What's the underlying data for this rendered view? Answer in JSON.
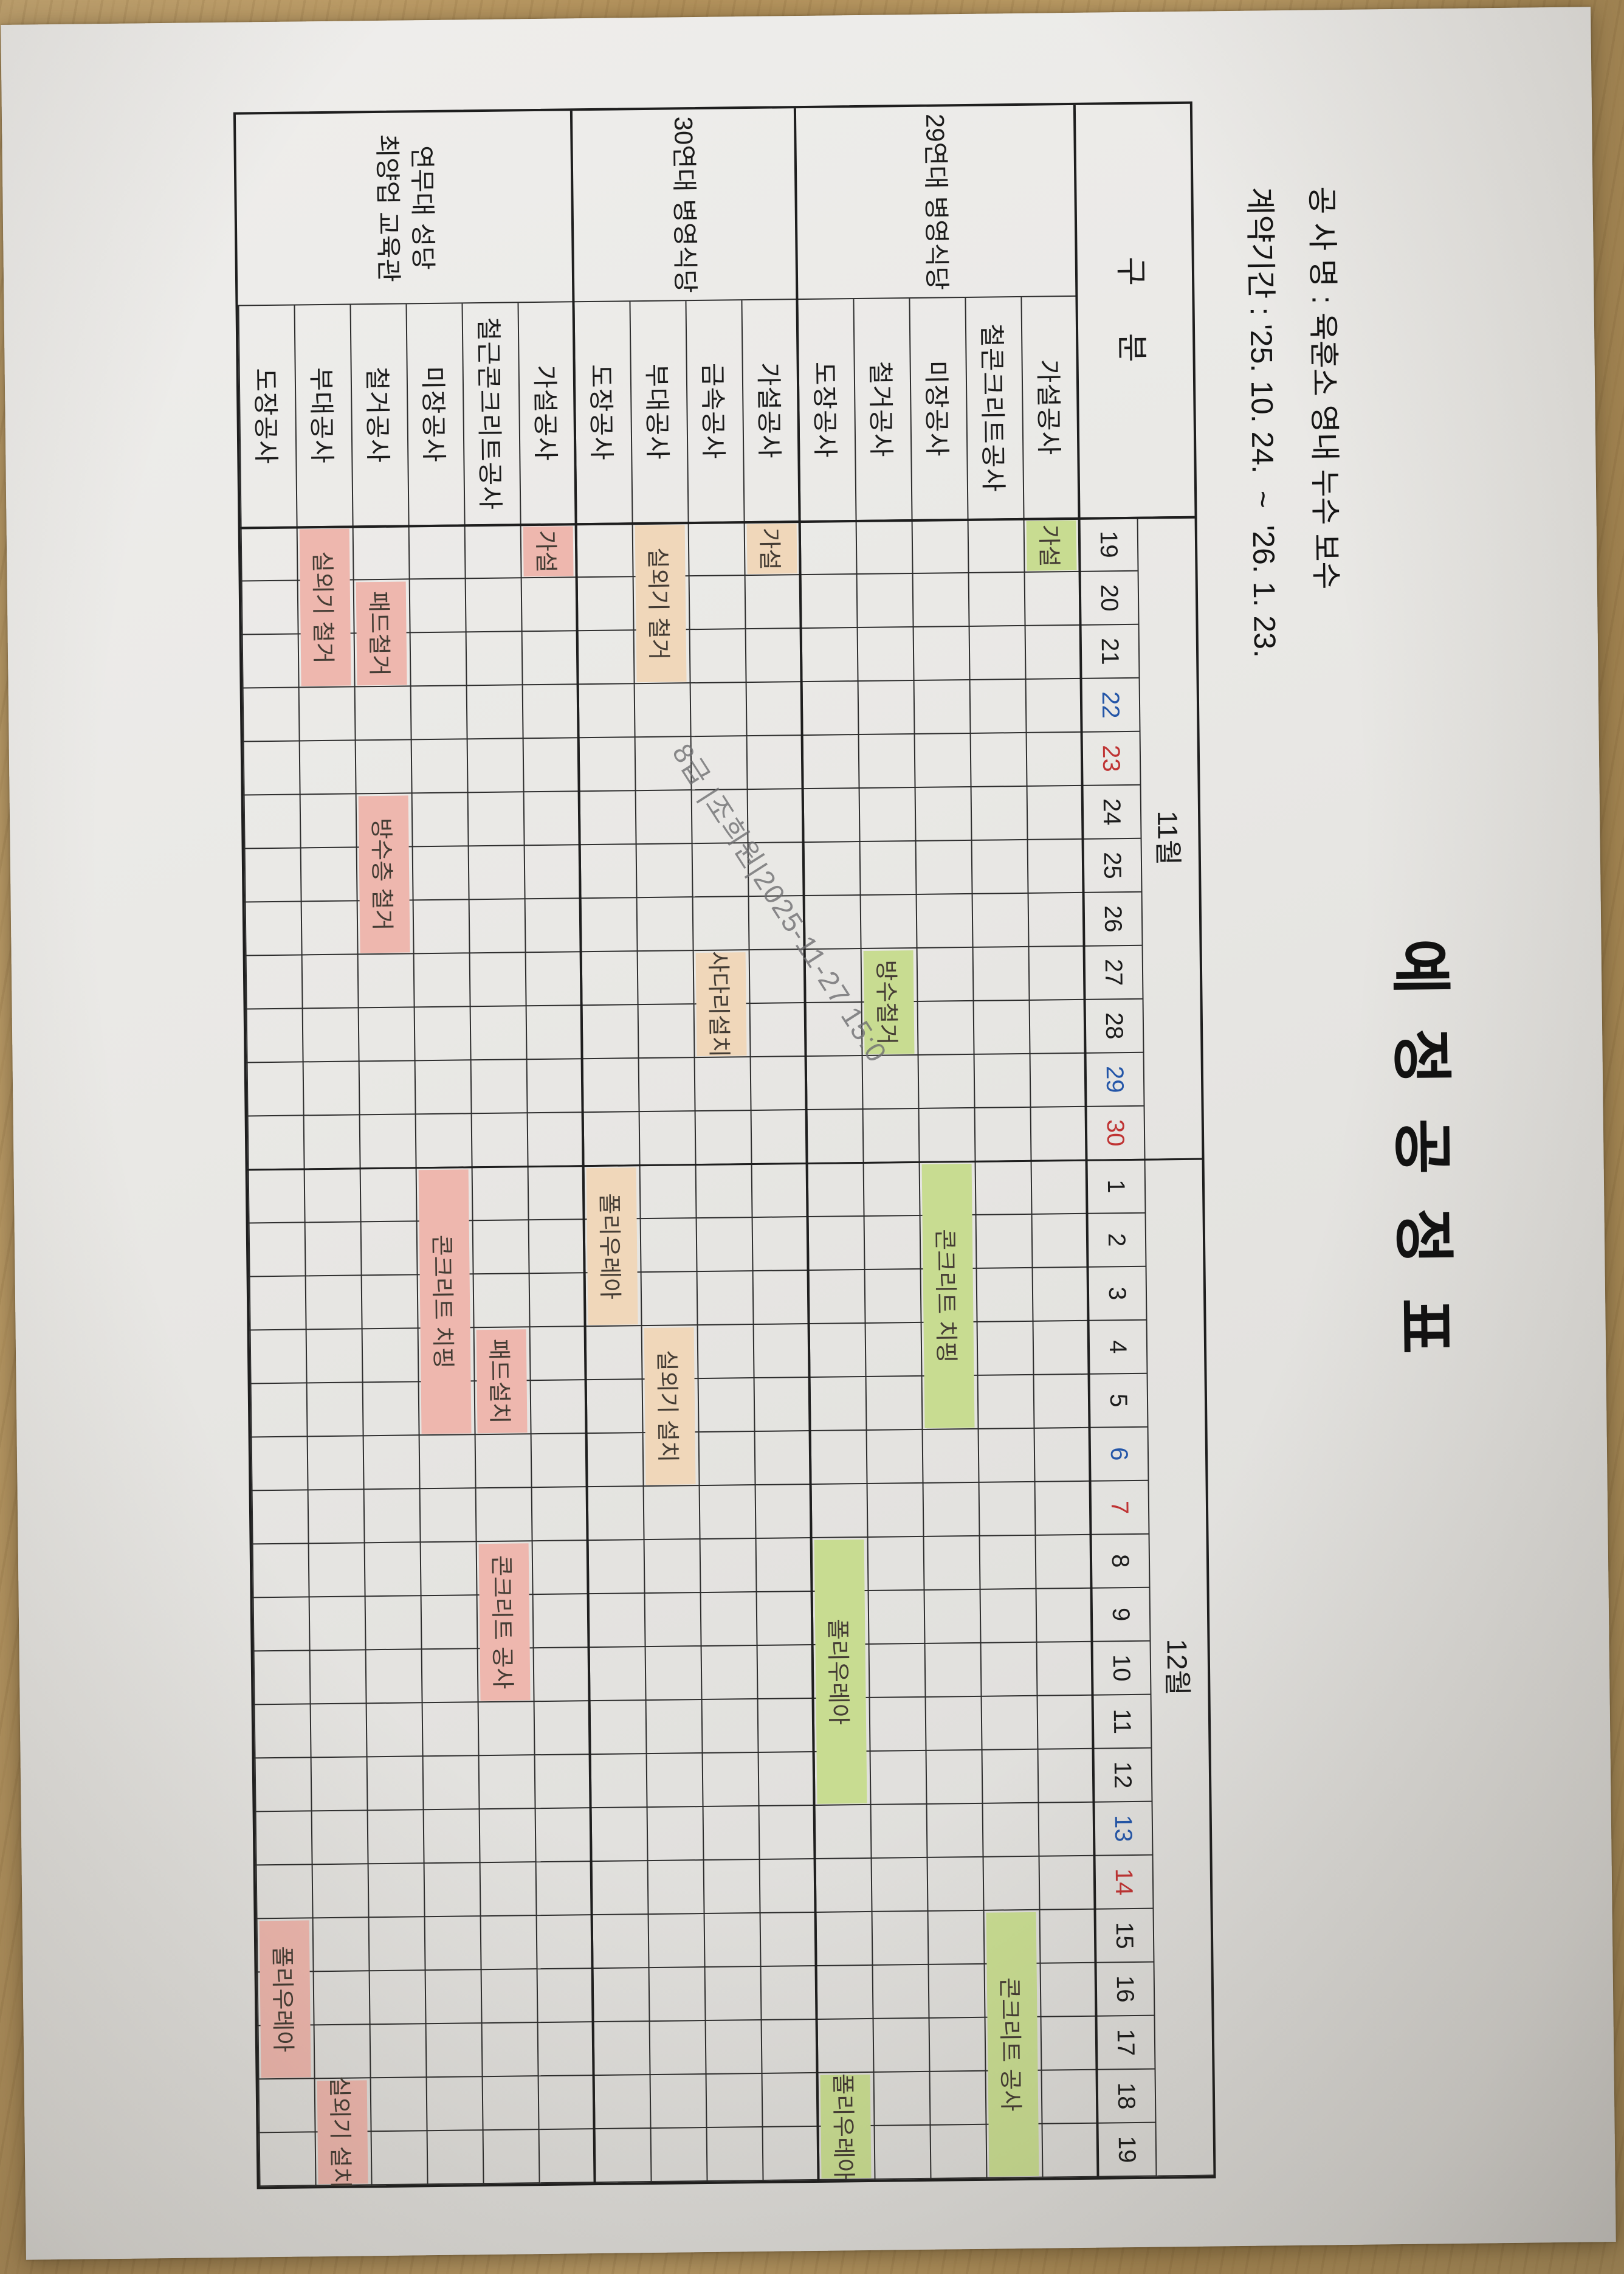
{
  "doc": {
    "title": "예 정 공 정 표",
    "meta": [
      {
        "label": "공 사 명",
        "separator": " : ",
        "value": "육훈소 영내 누수 보수"
      },
      {
        "label": "계약기간",
        "separator": " : ",
        "value": "'25. 10. 24.  ~  '26. 1. 23."
      }
    ],
    "watermark": {
      "text": "8급 |조희원|2025-11-27 15:0"
    }
  },
  "table": {
    "corner_label": "구    분",
    "months": [
      {
        "label": "11월",
        "num_days": 12
      },
      {
        "label": "12월",
        "num_days": 19
      }
    ],
    "day_numbers": [
      {
        "n": "19",
        "dow": "weekday"
      },
      {
        "n": "20",
        "dow": "weekday"
      },
      {
        "n": "21",
        "dow": "weekday"
      },
      {
        "n": "22",
        "dow": "sat"
      },
      {
        "n": "23",
        "dow": "sun"
      },
      {
        "n": "24",
        "dow": "weekday"
      },
      {
        "n": "25",
        "dow": "weekday"
      },
      {
        "n": "26",
        "dow": "weekday"
      },
      {
        "n": "27",
        "dow": "weekday"
      },
      {
        "n": "28",
        "dow": "weekday"
      },
      {
        "n": "29",
        "dow": "sat"
      },
      {
        "n": "30",
        "dow": "sun"
      },
      {
        "n": "1",
        "dow": "weekday"
      },
      {
        "n": "2",
        "dow": "weekday"
      },
      {
        "n": "3",
        "dow": "weekday"
      },
      {
        "n": "4",
        "dow": "weekday"
      },
      {
        "n": "5",
        "dow": "weekday"
      },
      {
        "n": "6",
        "dow": "sat"
      },
      {
        "n": "7",
        "dow": "sun"
      },
      {
        "n": "8",
        "dow": "weekday"
      },
      {
        "n": "9",
        "dow": "weekday"
      },
      {
        "n": "10",
        "dow": "weekday"
      },
      {
        "n": "11",
        "dow": "weekday"
      },
      {
        "n": "12",
        "dow": "weekday"
      },
      {
        "n": "13",
        "dow": "sat"
      },
      {
        "n": "14",
        "dow": "sun"
      },
      {
        "n": "15",
        "dow": "weekday"
      },
      {
        "n": "16",
        "dow": "weekday"
      },
      {
        "n": "17",
        "dow": "weekday"
      },
      {
        "n": "18",
        "dow": "weekday"
      },
      {
        "n": "19",
        "dow": "weekday"
      }
    ],
    "groups": [
      {
        "name": "29연대 병영식당",
        "name_lines": [
          "29연대 병영식당"
        ],
        "bar_color": "#c8dc91",
        "rows": [
          {
            "label": "가설공사",
            "bars": [
              {
                "text": "가설",
                "start": 0,
                "end": 0,
                "start_date": "11-19",
                "end_date": "11-19"
              }
            ]
          },
          {
            "label": "철콘크리트공사",
            "bars": [
              {
                "text": "콘크리트 공사",
                "start": 26,
                "end": 30,
                "start_date": "12-15",
                "end_date": "12-19"
              }
            ]
          },
          {
            "label": "미장공사",
            "bars": [
              {
                "text": "콘크리트 치핑",
                "start": 12,
                "end": 16,
                "start_date": "12-01",
                "end_date": "12-05"
              }
            ]
          },
          {
            "label": "철거공사",
            "bars": [
              {
                "text": "방수철거",
                "start": 8,
                "end": 9,
                "start_date": "11-27",
                "end_date": "11-28"
              }
            ]
          },
          {
            "label": "도장공사",
            "bars": [
              {
                "text": "폴리우레아",
                "start": 19,
                "end": 23,
                "start_date": "12-08",
                "end_date": "12-12"
              },
              {
                "text": "폴리우레아",
                "start": 29,
                "end": 30,
                "start_date": "12-18",
                "end_date": "12-19"
              }
            ]
          }
        ]
      },
      {
        "name": "30연대 병영식당",
        "name_lines": [
          "30연대 병영식당"
        ],
        "bar_color": "#f0d7ba",
        "rows": [
          {
            "label": "가설공사",
            "bars": [
              {
                "text": "가설",
                "start": 0,
                "end": 0,
                "start_date": "11-19",
                "end_date": "11-19"
              }
            ]
          },
          {
            "label": "금속공사",
            "bars": [
              {
                "text": "사다리설치",
                "start": 8,
                "end": 9,
                "start_date": "11-27",
                "end_date": "11-28"
              }
            ]
          },
          {
            "label": "부대공사",
            "bars": [
              {
                "text": "실외기 철거",
                "start": 0,
                "end": 2,
                "start_date": "11-19",
                "end_date": "11-21"
              },
              {
                "text": "실외기 설치",
                "start": 15,
                "end": 17,
                "start_date": "12-04",
                "end_date": "12-06"
              }
            ]
          },
          {
            "label": "도장공사",
            "bars": [
              {
                "text": "폴리우레아",
                "start": 12,
                "end": 14,
                "start_date": "12-01",
                "end_date": "12-03"
              }
            ]
          }
        ]
      },
      {
        "name": "연무대 성당 최양업 교육관",
        "name_lines": [
          "연무대 성당",
          "최양업 교육관"
        ],
        "bar_color": "#eeb7ae",
        "rows": [
          {
            "label": "가설공사",
            "bars": [
              {
                "text": "가설",
                "start": 0,
                "end": 0,
                "start_date": "11-19",
                "end_date": "11-19"
              }
            ]
          },
          {
            "label": "철근콘크리트공사",
            "bars": [
              {
                "text": "패드설치",
                "start": 15,
                "end": 16,
                "start_date": "12-04",
                "end_date": "12-05"
              },
              {
                "text": "콘크리트 공사",
                "start": 19,
                "end": 21,
                "start_date": "12-08",
                "end_date": "12-10"
              }
            ]
          },
          {
            "label": "미장공사",
            "bars": [
              {
                "text": "콘크리트 치핑",
                "start": 12,
                "end": 16,
                "start_date": "12-01",
                "end_date": "12-05"
              }
            ]
          },
          {
            "label": "철거공사",
            "bars": [
              {
                "text": "패드철거",
                "start": 1,
                "end": 2,
                "start_date": "11-20",
                "end_date": "11-21"
              },
              {
                "text": "방수층 철거",
                "start": 5,
                "end": 7,
                "start_date": "11-24",
                "end_date": "11-26"
              }
            ]
          },
          {
            "label": "부대공사",
            "bars": [
              {
                "text": "실외기 철거",
                "start": 0,
                "end": 2,
                "start_date": "11-19",
                "end_date": "11-21"
              },
              {
                "text": "실외기 설치",
                "start": 29,
                "end": 30,
                "start_date": "12-18",
                "end_date": "12-19"
              }
            ]
          },
          {
            "label": "도장공사",
            "bars": [
              {
                "text": "폴리우레아",
                "start": 26,
                "end": 28,
                "start_date": "12-15",
                "end_date": "12-17"
              }
            ]
          }
        ]
      }
    ]
  },
  "colors": {
    "saturday": "#2456a8",
    "sunday": "#bf3333",
    "green_bars_29": "#c8dc91",
    "tan_bars_30": "#f0d7ba",
    "pink_bars_yeonmudae": "#eeb7ae",
    "paper": "#e9e8e5",
    "grid_line": "#2e2e2e",
    "wood_desk": "#b3925c"
  }
}
